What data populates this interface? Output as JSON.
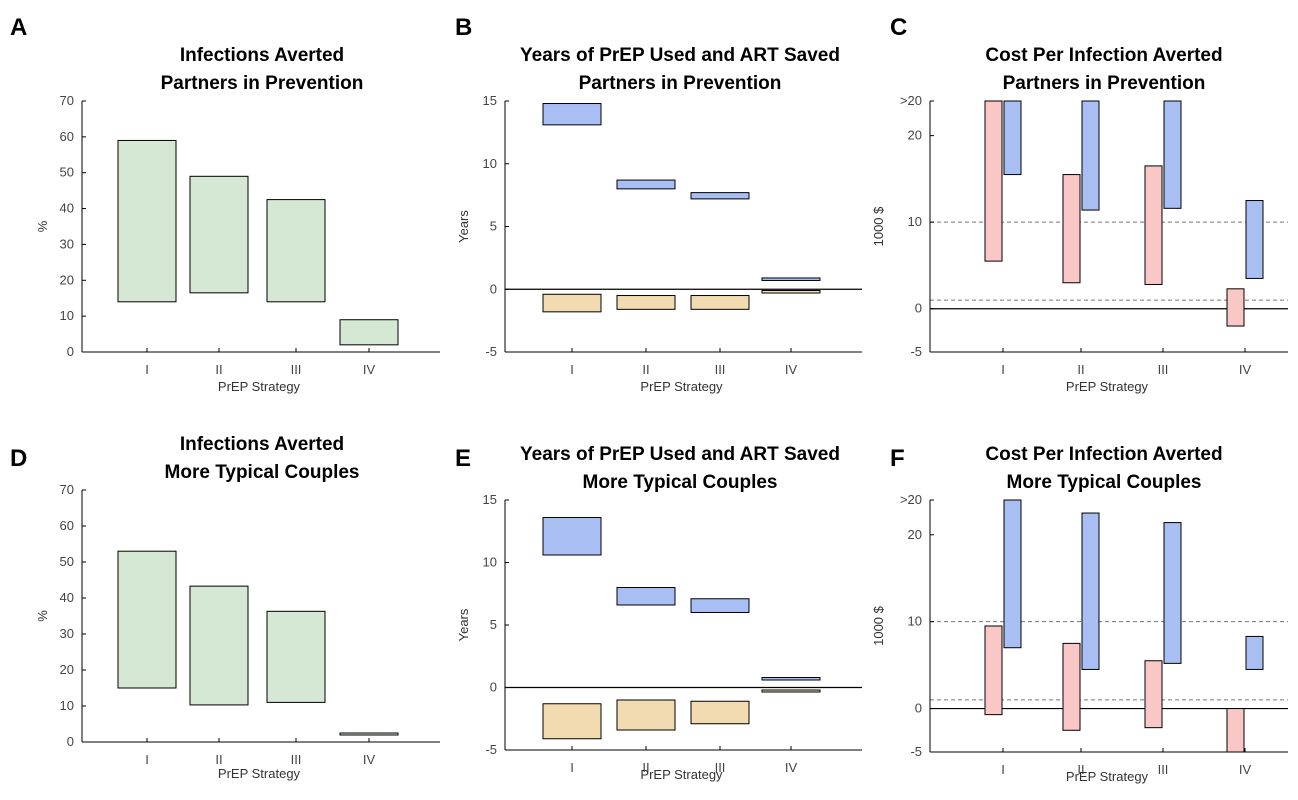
{
  "colors": {
    "green": "#d5e8d4",
    "blue": "#a9bff3",
    "orange": "#f2dbb1",
    "pink": "#f9c7c5",
    "dash": "#777777"
  },
  "chart_data": [
    {
      "type": "bar",
      "panel_label": "A",
      "title": [
        "Infections Averted",
        "Partners in Prevention"
      ],
      "xlabel": "PrEP Strategy",
      "ylabel": "%",
      "categories": [
        "I",
        "II",
        "III",
        "IV"
      ],
      "ylim": [
        0,
        70
      ],
      "yticks": [
        "0",
        "10",
        "20",
        "30",
        "40",
        "50",
        "60",
        "70"
      ],
      "series": [
        {
          "color": "green",
          "ranges": [
            [
              14,
              59
            ],
            [
              16.5,
              49
            ],
            [
              14,
              42.5
            ],
            [
              2,
              9
            ]
          ]
        }
      ]
    },
    {
      "type": "bar",
      "panel_label": "B",
      "title": [
        "Years of PrEP Used and ART Saved",
        "Partners in Prevention"
      ],
      "xlabel": "PrEP Strategy",
      "ylabel": "Years",
      "categories": [
        "I",
        "II",
        "III",
        "IV"
      ],
      "ylim": [
        -5,
        15
      ],
      "yticks": [
        "-5",
        "0",
        "5",
        "10",
        "15"
      ],
      "series": [
        {
          "color": "blue",
          "ranges": [
            [
              13.1,
              14.8
            ],
            [
              8,
              8.7
            ],
            [
              7.2,
              7.7
            ],
            [
              0.7,
              0.9
            ]
          ]
        },
        {
          "color": "orange",
          "ranges": [
            [
              -1.8,
              -0.4
            ],
            [
              -1.6,
              -0.5
            ],
            [
              -1.6,
              -0.5
            ],
            [
              -0.3,
              -0.1
            ]
          ]
        }
      ]
    },
    {
      "type": "bar",
      "panel_label": "C",
      "title": [
        "Cost Per Infection Averted",
        "Partners in Prevention"
      ],
      "xlabel": "PrEP Strategy",
      "ylabel": "1000 $",
      "categories": [
        "I",
        "II",
        "III",
        "IV"
      ],
      "ylim": [
        -5,
        24
      ],
      "yticks": [
        "-5",
        "0",
        "10",
        "20",
        ">20"
      ],
      "reference_lines": [
        10,
        1
      ],
      "series": [
        {
          "color": "pink",
          "ranges": [
            [
              5.5,
              24
            ],
            [
              3,
              15.5
            ],
            [
              2.8,
              16.5
            ],
            [
              -2,
              2.3
            ]
          ]
        },
        {
          "color": "blue",
          "ranges": [
            [
              15.5,
              24
            ],
            [
              11.4,
              24
            ],
            [
              11.6,
              24
            ],
            [
              3.5,
              12.5
            ]
          ]
        }
      ]
    },
    {
      "type": "bar",
      "panel_label": "D",
      "title": [
        "Infections Averted",
        "More Typical Couples"
      ],
      "xlabel": "PrEP Strategy",
      "ylabel": "%",
      "categories": [
        "I",
        "II",
        "III",
        "IV"
      ],
      "ylim": [
        0,
        70
      ],
      "yticks": [
        "0",
        "10",
        "20",
        "30",
        "40",
        "50",
        "60",
        "70"
      ],
      "series": [
        {
          "color": "green",
          "ranges": [
            [
              15,
              53
            ],
            [
              10.3,
              43.3
            ],
            [
              11,
              36.3
            ],
            [
              2.1,
              2.5
            ]
          ]
        }
      ]
    },
    {
      "type": "bar",
      "panel_label": "E",
      "title": [
        "Years of PrEP Used and ART Saved",
        "More Typical Couples"
      ],
      "xlabel": "PrEP Strategy",
      "ylabel": "Years",
      "categories": [
        "I",
        "II",
        "III",
        "IV"
      ],
      "ylim": [
        -5,
        15
      ],
      "yticks": [
        "-5",
        "0",
        "5",
        "10",
        "15"
      ],
      "series": [
        {
          "color": "blue",
          "ranges": [
            [
              10.6,
              13.6
            ],
            [
              6.6,
              8
            ],
            [
              6,
              7.1
            ],
            [
              0.6,
              0.8
            ]
          ]
        },
        {
          "color": "orange",
          "ranges": [
            [
              -4.1,
              -1.3
            ],
            [
              -3.4,
              -1
            ],
            [
              -2.9,
              -1.1
            ],
            [
              -0.3,
              -0.2
            ]
          ]
        }
      ]
    },
    {
      "type": "bar",
      "panel_label": "F",
      "title": [
        "Cost Per Infection Averted",
        "More Typical Couples"
      ],
      "xlabel": "PrEP Strategy",
      "ylabel": "1000 $",
      "categories": [
        "I",
        "II",
        "III",
        "IV"
      ],
      "ylim": [
        -5,
        24
      ],
      "yticks": [
        "-5",
        "0",
        "10",
        "20",
        ">20"
      ],
      "reference_lines": [
        10,
        1
      ],
      "series": [
        {
          "color": "pink",
          "ranges": [
            [
              -0.7,
              9.5
            ],
            [
              -2.5,
              7.5
            ],
            [
              -2.2,
              5.5
            ],
            [
              -5,
              0
            ]
          ]
        },
        {
          "color": "blue",
          "ranges": [
            [
              7,
              24
            ],
            [
              4.5,
              22.5
            ],
            [
              5.2,
              21.4
            ],
            [
              4.5,
              8.3
            ]
          ]
        }
      ]
    }
  ]
}
